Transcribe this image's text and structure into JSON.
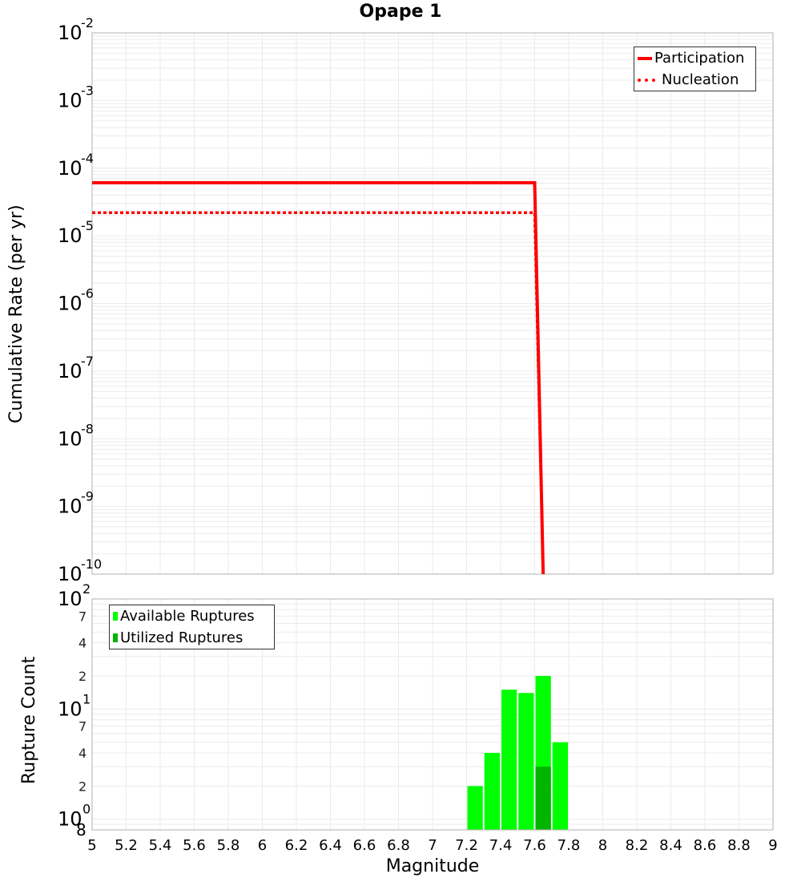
{
  "title": "Opape 1",
  "chart_data": [
    {
      "type": "line",
      "title": "Opape 1",
      "xlabel": "Magnitude",
      "ylabel": "Cumulative Rate (per yr)",
      "xlim": [
        5,
        9
      ],
      "ylim": [
        1e-10,
        0.01
      ],
      "yscale": "log",
      "y_tick_exponents": [
        -2,
        -3,
        -4,
        -5,
        -6,
        -7,
        -8,
        -9,
        -10
      ],
      "grid": true,
      "legend_position": "upper right",
      "series": [
        {
          "name": "Participation",
          "style": "solid",
          "color": "#ff0000",
          "x": [
            5.0,
            7.6,
            7.65
          ],
          "y": [
            6.1e-05,
            6.1e-05,
            1e-10
          ]
        },
        {
          "name": "Nucleation",
          "style": "dotted",
          "color": "#ff0000",
          "x": [
            5.0,
            7.6,
            7.65
          ],
          "y": [
            2.2e-05,
            2.2e-05,
            1e-10
          ]
        }
      ]
    },
    {
      "type": "bar",
      "xlabel": "Magnitude",
      "ylabel": "Rupture Count",
      "xlim": [
        5,
        9
      ],
      "ylim": [
        0.8,
        100
      ],
      "yscale": "log",
      "x_ticks": [
        "5",
        "5.2",
        "5.4",
        "5.6",
        "5.8",
        "6",
        "6.2",
        "6.4",
        "6.6",
        "6.8",
        "7",
        "7.2",
        "7.4",
        "7.6",
        "7.8",
        "8",
        "8.2",
        "8.4",
        "8.6",
        "8.8",
        "9"
      ],
      "legend_position": "upper left",
      "bar_width": 0.1,
      "categories": [
        7.25,
        7.35,
        7.45,
        7.55,
        7.65,
        7.75
      ],
      "series": [
        {
          "name": "Available Ruptures",
          "color": "#00ff00",
          "values": [
            2,
            4,
            15,
            14,
            20,
            5
          ]
        },
        {
          "name": "Utilized Ruptures",
          "color": "#00b400",
          "values": [
            0,
            0,
            0,
            0,
            3,
            0
          ]
        }
      ]
    }
  ],
  "labels": {
    "x_axis": "Magnitude",
    "top_y_axis": "Cumulative Rate (per yr)",
    "bottom_y_axis": "Rupture Count",
    "legend_participation": "Participation",
    "legend_nucleation": "Nucleation",
    "legend_available": "Available Ruptures",
    "legend_utilized": "Utilized Ruptures"
  }
}
